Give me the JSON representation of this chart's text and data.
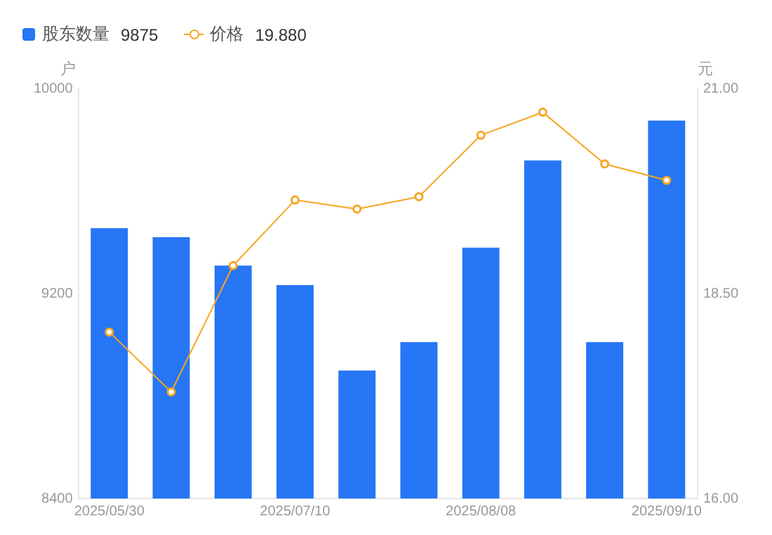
{
  "chart_data": {
    "type": "bar",
    "ylabel": "户",
    "y2label": "元",
    "categories": [
      "2025/05/30",
      null,
      null,
      "2025/07/10",
      null,
      null,
      "2025/08/08",
      null,
      null,
      "2025/09/10"
    ],
    "series": [
      {
        "name": "股东数量",
        "color": "#2776f5",
        "values": [
          9455,
          9420,
          9309,
          9233,
          8899,
          9010,
          9379,
          9719,
          9010,
          9875
        ]
      },
      {
        "name": "价格",
        "type": "line",
        "axis": "y2",
        "color": "#f5a623",
        "marker": "circle",
        "values": [
          18.03,
          17.3,
          18.84,
          19.64,
          19.53,
          19.68,
          20.43,
          20.71,
          20.08,
          19.88
        ]
      }
    ],
    "annotations": [
      "9875",
      "19.880"
    ],
    "ylim": [
      8400,
      10000
    ],
    "yticks": [
      8400,
      9200,
      10000
    ],
    "y2lim": [
      16,
      21
    ],
    "y2ticks": [
      {
        "value": 16,
        "label": "16.00"
      },
      {
        "value": 18.5,
        "label": "18.50"
      },
      {
        "value": 21,
        "label": "21.00"
      }
    ],
    "grid": false,
    "legend": "top left"
  }
}
